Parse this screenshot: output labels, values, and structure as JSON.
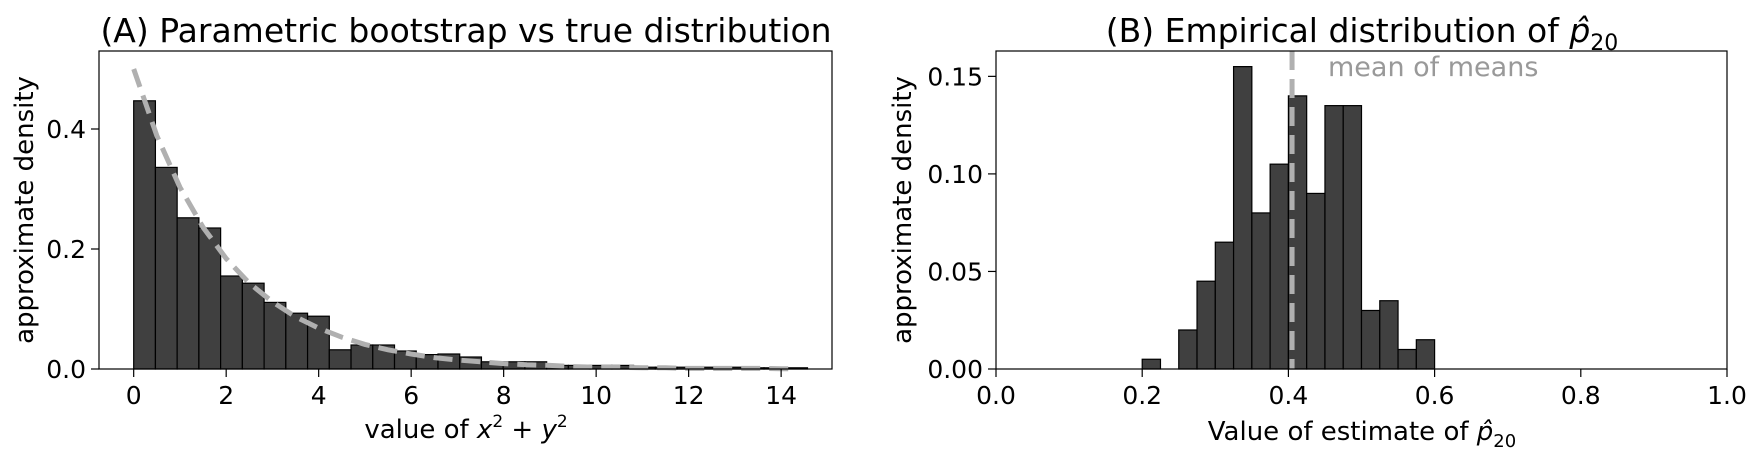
{
  "colors": {
    "bar_fill": "#404040",
    "bar_edge": "#000000",
    "reference_line": "#b0b0b0",
    "annotation_text": "#999999"
  },
  "chart_data": [
    {
      "type": "bar",
      "title": "(A) Parametric bootstrap vs true distribution",
      "xlabel": "value of x² + y²",
      "ylabel": "approximate density",
      "xlim": [
        -0.75,
        15.1
      ],
      "ylim": [
        0,
        0.53
      ],
      "xticks": [
        0,
        2,
        4,
        6,
        8,
        10,
        12,
        14
      ],
      "yticks": [
        0.0,
        0.2,
        0.4
      ],
      "ytick_labels": [
        "0.0",
        "0.2",
        "0.4"
      ],
      "grid": false,
      "bin_width": 0.47,
      "bin_starts": [
        0,
        0.47,
        0.94,
        1.41,
        1.88,
        2.35,
        2.82,
        3.29,
        3.76,
        4.23,
        4.7,
        5.17,
        5.64,
        6.11,
        6.58,
        7.05,
        7.52,
        7.99,
        8.46,
        8.93,
        9.4,
        9.87,
        10.34,
        10.81,
        11.28,
        11.75,
        12.22,
        12.69,
        13.16,
        13.63,
        14.1
      ],
      "values": [
        0.447,
        0.336,
        0.252,
        0.235,
        0.155,
        0.143,
        0.111,
        0.093,
        0.088,
        0.032,
        0.04,
        0.04,
        0.03,
        0.024,
        0.025,
        0.02,
        0.012,
        0.012,
        0.012,
        0.006,
        0.006,
        0.006,
        0.006,
        0.003,
        0.003,
        0.003,
        0.003,
        0.003,
        0.002,
        0.002,
        0.002
      ],
      "reference_curve": {
        "kind": "density",
        "style": "dashed",
        "x": [
          0,
          0.5,
          1,
          1.5,
          2,
          2.5,
          3,
          3.5,
          4,
          4.5,
          5,
          5.5,
          6,
          6.5,
          7,
          7.5,
          8,
          8.5,
          9,
          9.5,
          10,
          10.5,
          11,
          11.5,
          12,
          12.5,
          13,
          13.5,
          14,
          14.3
        ],
        "y": [
          0.5,
          0.389,
          0.303,
          0.236,
          0.184,
          0.143,
          0.112,
          0.087,
          0.068,
          0.053,
          0.041,
          0.032,
          0.025,
          0.019,
          0.015,
          0.012,
          0.009,
          0.007,
          0.006,
          0.004,
          0.003,
          0.003,
          0.002,
          0.002,
          0.001,
          0.001,
          0.001,
          0.001,
          0.0005,
          0.0004
        ]
      }
    },
    {
      "type": "bar",
      "title": "(B) Empirical distribution of p̂₂₀",
      "xlabel": "Value of estimate of p̂₂₀",
      "ylabel": "approximate density",
      "xlim": [
        0.0,
        1.0
      ],
      "ylim": [
        0,
        0.163
      ],
      "xticks": [
        0.0,
        0.2,
        0.4,
        0.6,
        0.8,
        1.0
      ],
      "xtick_labels": [
        "0.0",
        "0.2",
        "0.4",
        "0.6",
        "0.8",
        "1.0"
      ],
      "yticks": [
        0.0,
        0.05,
        0.1,
        0.15
      ],
      "ytick_labels": [
        "0.00",
        "0.05",
        "0.10",
        "0.15"
      ],
      "grid": false,
      "bin_width": 0.025,
      "bin_starts": [
        0.2,
        0.225,
        0.25,
        0.275,
        0.3,
        0.325,
        0.35,
        0.375,
        0.4,
        0.425,
        0.45,
        0.475,
        0.5,
        0.525,
        0.55,
        0.575
      ],
      "values": [
        0.005,
        0.0,
        0.02,
        0.045,
        0.065,
        0.155,
        0.08,
        0.105,
        0.14,
        0.09,
        0.135,
        0.135,
        0.03,
        0.035,
        0.01,
        0.015
      ],
      "reference_line": {
        "orientation": "vertical",
        "x": 0.405,
        "style": "dashed"
      },
      "annotation": "mean of means"
    }
  ]
}
